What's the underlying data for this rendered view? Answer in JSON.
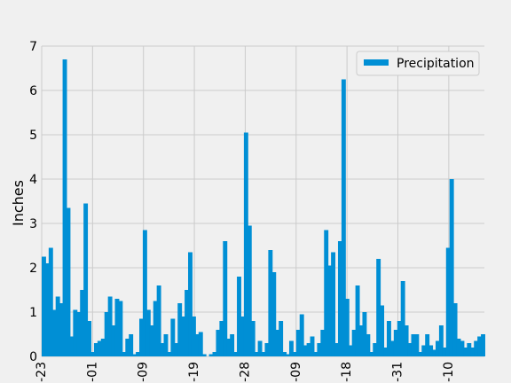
{
  "chart_data": {
    "type": "bar",
    "title": "",
    "xlabel": "",
    "ylabel": "Inches",
    "ylim": [
      0,
      7
    ],
    "yticks": [
      0,
      1,
      2,
      3,
      4,
      5,
      6,
      7
    ],
    "xtick_labels": [
      "-23",
      "-01",
      "-09",
      "-19",
      "-28",
      "-09",
      "-18",
      "-31",
      "-10"
    ],
    "grid": true,
    "legend": {
      "position": "top-right",
      "entries": [
        "Precipitation"
      ]
    },
    "colors": {
      "series": "#008fd5",
      "background": "#f0f0f0",
      "grid": "#cbcbcb"
    },
    "series": [
      {
        "name": "Precipitation",
        "values": [
          2.25,
          2.1,
          2.45,
          1.05,
          1.35,
          1.2,
          6.7,
          3.35,
          0.45,
          1.05,
          1.0,
          1.5,
          3.45,
          0.8,
          0.1,
          0.3,
          0.35,
          0.4,
          1.0,
          1.35,
          0.7,
          1.3,
          1.25,
          0.1,
          0.4,
          0.5,
          0.05,
          0.1,
          0.85,
          2.85,
          1.05,
          0.7,
          1.25,
          1.6,
          0.3,
          0.5,
          0.1,
          0.85,
          0.3,
          1.2,
          0.9,
          1.5,
          2.35,
          0.9,
          0.5,
          0.55,
          0.05,
          0.0,
          0.05,
          0.1,
          0.6,
          0.8,
          2.6,
          0.4,
          0.5,
          0.1,
          1.8,
          0.9,
          5.05,
          2.95,
          0.8,
          0.1,
          0.35,
          0.1,
          0.3,
          2.4,
          1.9,
          0.6,
          0.8,
          0.1,
          0.05,
          0.35,
          0.1,
          0.6,
          0.95,
          0.25,
          0.3,
          0.45,
          0.1,
          0.3,
          0.6,
          2.85,
          2.05,
          2.35,
          0.3,
          2.6,
          6.25,
          1.3,
          0.25,
          0.6,
          1.6,
          0.7,
          1.0,
          0.5,
          0.1,
          0.3,
          2.2,
          1.15,
          0.2,
          0.8,
          0.35,
          0.6,
          0.8,
          1.7,
          0.7,
          0.3,
          0.5,
          0.5,
          0.1,
          0.25,
          0.5,
          0.25,
          0.15,
          0.35,
          0.7,
          0.2,
          2.45,
          4.0,
          1.2,
          0.4,
          0.35,
          0.2,
          0.3,
          0.2,
          0.35,
          0.45,
          0.5
        ]
      }
    ]
  }
}
